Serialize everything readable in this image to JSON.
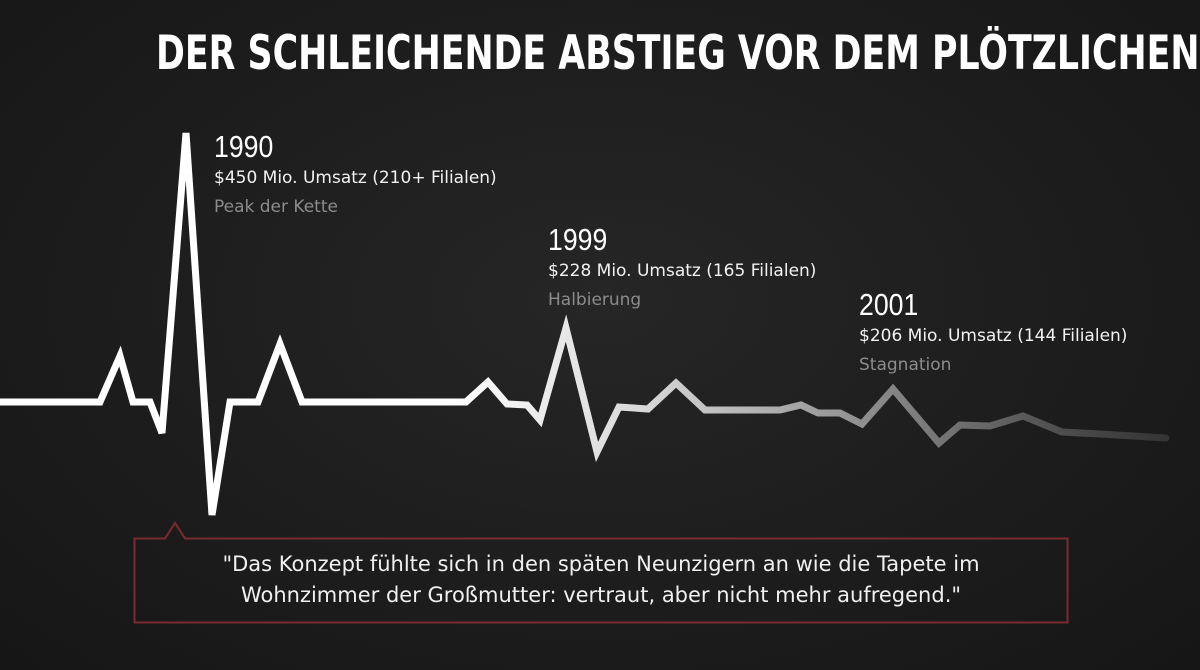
{
  "title": "DER SCHLEICHENDE ABSTIEG VOR DEM PLÖTZLICHEN ENDE",
  "milestones": [
    {
      "year": "1990",
      "stat": "$450 Mio. Umsatz (210+ Filialen)",
      "note": "Peak der Kette"
    },
    {
      "year": "1999",
      "stat": "$228 Mio. Umsatz (165 Filialen)",
      "note": "Halbierung"
    },
    {
      "year": "2001",
      "stat": "$206 Mio. Umsatz (144 Filialen)",
      "note": "Stagnation"
    }
  ],
  "quote": {
    "line1": "\"Das Konzept fühlte sich in den späten Neunzigern an wie die Tapete im",
    "line2": "Wohnzimmer der Großmutter: vertraut, aber nicht mehr aufregend.\""
  },
  "colors": {
    "background": "#1c1c1c",
    "line_start": "#ffffff",
    "line_end": "#333333",
    "quote_border": "#7a2b30",
    "muted_text": "#8c8c8c"
  }
}
